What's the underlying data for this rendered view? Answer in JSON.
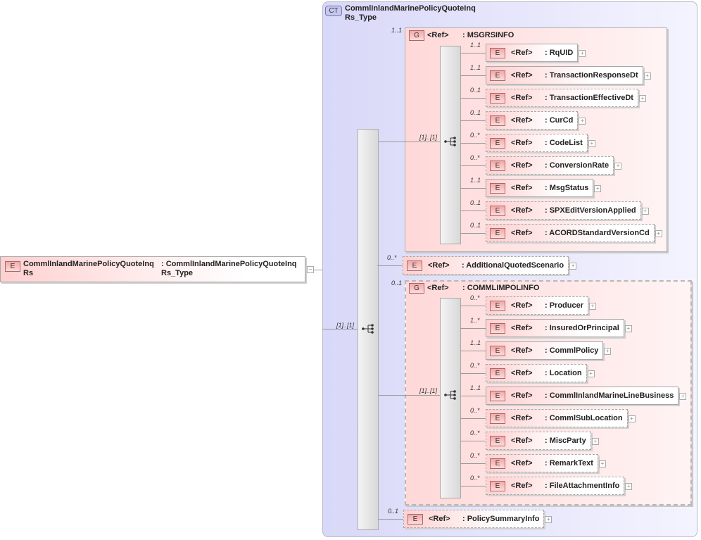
{
  "complex_type": {
    "badge": "CT",
    "title_line1": "CommlInlandMarinePolicyQuoteInq",
    "title_line2": "Rs_Type"
  },
  "root_element": {
    "badge": "E",
    "name_line1": "CommlInlandMarinePolicyQuoteInq",
    "name_line2": "Rs",
    "type_line1": ": CommlInlandMarinePolicyQuoteInq",
    "type_line2": "Rs_Type",
    "collapse_icon": "minus-icon",
    "sequence_cardinality": "[1]..[1]"
  },
  "colors": {
    "element_fill": "#ffd0d0",
    "complex_type_fill": "#d8d8f8",
    "badge_fill": "#f4a8a8"
  },
  "groups": [
    {
      "badge": "G",
      "ref": "<Ref>",
      "name": ": MSGRSINFO",
      "cardinality": "1..1",
      "sequence_cardinality": "[1]..[1]",
      "children": [
        {
          "badge": "E",
          "ref": "<Ref>",
          "name": ": RqUID",
          "cardinality": "1..1"
        },
        {
          "badge": "E",
          "ref": "<Ref>",
          "name": ": TransactionResponseDt",
          "cardinality": "1..1"
        },
        {
          "badge": "E",
          "ref": "<Ref>",
          "name": ": TransactionEffectiveDt",
          "cardinality": "0..1"
        },
        {
          "badge": "E",
          "ref": "<Ref>",
          "name": ": CurCd",
          "cardinality": "0..1"
        },
        {
          "badge": "E",
          "ref": "<Ref>",
          "name": ": CodeList",
          "cardinality": "0..*"
        },
        {
          "badge": "E",
          "ref": "<Ref>",
          "name": ": ConversionRate",
          "cardinality": "0..*"
        },
        {
          "badge": "E",
          "ref": "<Ref>",
          "name": ": MsgStatus",
          "cardinality": "1..1"
        },
        {
          "badge": "E",
          "ref": "<Ref>",
          "name": ": SPXEditVersionApplied",
          "cardinality": "0..1"
        },
        {
          "badge": "E",
          "ref": "<Ref>",
          "name": ": ACORDStandardVersionCd",
          "cardinality": "0..1"
        }
      ]
    },
    {
      "badge": "G",
      "ref": "<Ref>",
      "name": ": COMMLIMPOLINFO",
      "cardinality": "0..1",
      "sequence_cardinality": "[1]..[1]",
      "children": [
        {
          "badge": "E",
          "ref": "<Ref>",
          "name": ": Producer",
          "cardinality": "0..*"
        },
        {
          "badge": "E",
          "ref": "<Ref>",
          "name": ": InsuredOrPrincipal",
          "cardinality": "1..*"
        },
        {
          "badge": "E",
          "ref": "<Ref>",
          "name": ": CommlPolicy",
          "cardinality": "1..1"
        },
        {
          "badge": "E",
          "ref": "<Ref>",
          "name": ": Location",
          "cardinality": "0..*"
        },
        {
          "badge": "E",
          "ref": "<Ref>",
          "name": ": CommlInlandMarineLineBusiness",
          "cardinality": "1..1"
        },
        {
          "badge": "E",
          "ref": "<Ref>",
          "name": ": CommlSubLocation",
          "cardinality": "0..*"
        },
        {
          "badge": "E",
          "ref": "<Ref>",
          "name": ": MiscParty",
          "cardinality": "0..*"
        },
        {
          "badge": "E",
          "ref": "<Ref>",
          "name": ": RemarkText",
          "cardinality": "0..*"
        },
        {
          "badge": "E",
          "ref": "<Ref>",
          "name": ": FileAttachmentInfo",
          "cardinality": "0..*"
        }
      ]
    }
  ],
  "direct_elements": [
    {
      "badge": "E",
      "ref": "<Ref>",
      "name": ": AdditionalQuotedScenario",
      "cardinality": "0..*"
    },
    {
      "badge": "E",
      "ref": "<Ref>",
      "name": ": PolicySummaryInfo",
      "cardinality": "0..1"
    }
  ]
}
